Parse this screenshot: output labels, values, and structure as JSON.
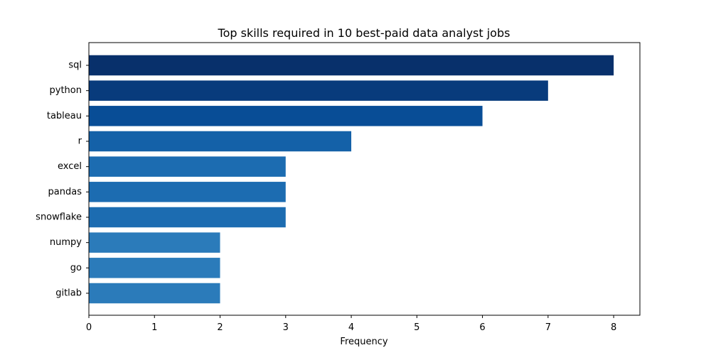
{
  "chart_data": {
    "type": "bar",
    "orientation": "horizontal",
    "title": "Top skills required in 10 best-paid data analyst jobs",
    "xlabel": "Frequency",
    "ylabel": "",
    "categories": [
      "sql",
      "python",
      "tableau",
      "r",
      "excel",
      "pandas",
      "snowflake",
      "numpy",
      "go",
      "gitlab"
    ],
    "values": [
      8,
      7,
      6,
      4,
      3,
      3,
      3,
      2,
      2,
      2
    ],
    "colors": [
      "#08306b",
      "#083b7c",
      "#084d96",
      "#1461a8",
      "#1c6cb1",
      "#1c6cb1",
      "#1c6cb1",
      "#2b7bba",
      "#2b7bba",
      "#2b7bba"
    ],
    "xlim": [
      0,
      8.4
    ],
    "xticks": [
      0,
      1,
      2,
      3,
      4,
      5,
      6,
      7,
      8
    ],
    "grid": false,
    "legend": false
  }
}
